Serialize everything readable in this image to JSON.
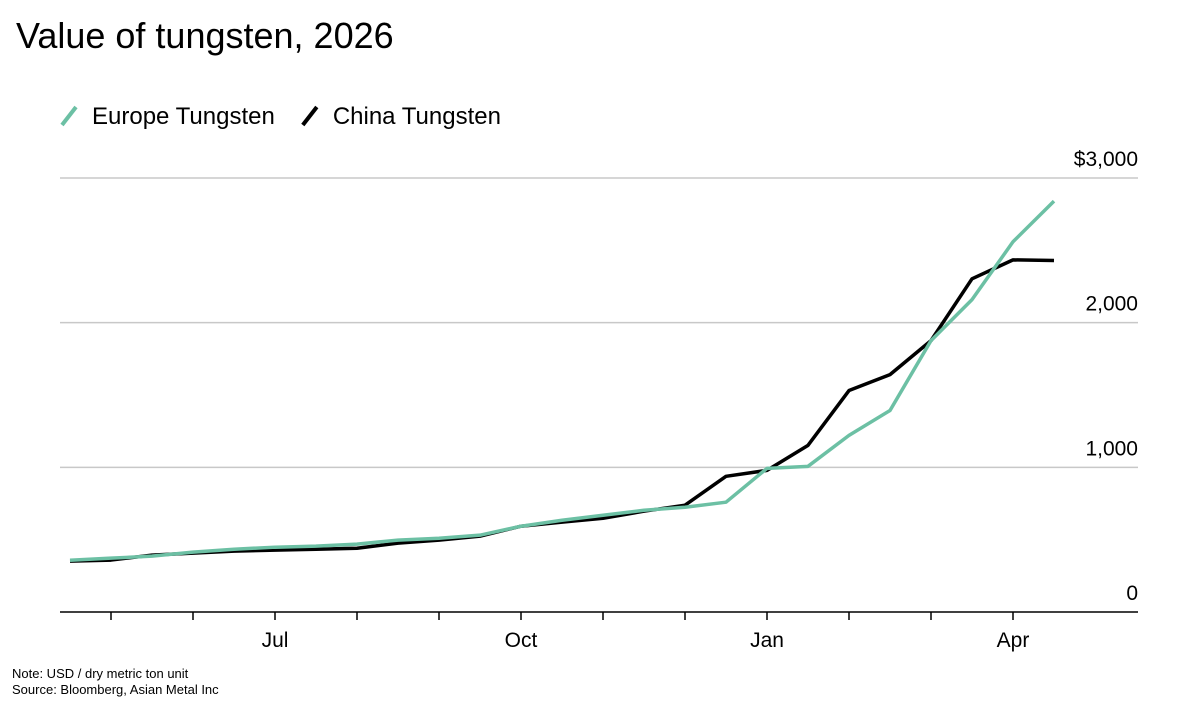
{
  "chart_data": {
    "type": "line",
    "title": "Value of tungsten, 2026",
    "note": "Note: USD / dry metric ton unit",
    "source": "Source: Bloomberg, Asian Metal Inc",
    "categories": [
      null,
      null,
      null,
      null,
      null,
      "Jul",
      null,
      null,
      null,
      null,
      null,
      "Oct",
      null,
      null,
      null,
      null,
      null,
      "Jan",
      null,
      null,
      null,
      null,
      null,
      "Apr",
      null
    ],
    "series": [
      {
        "name": "Europe Tungsten",
        "color": "#6cc0a4",
        "values": [
          358,
          372,
          386,
          414,
          434,
          448,
          455,
          469,
          497,
          510,
          531,
          593,
          634,
          669,
          703,
          724,
          759,
          993,
          1007,
          1221,
          1393,
          1876,
          2159,
          2559,
          2840
        ]
      },
      {
        "name": "China Tungsten",
        "color": "#000000",
        "values": [
          352,
          359,
          393,
          407,
          421,
          428,
          434,
          441,
          476,
          497,
          524,
          593,
          621,
          648,
          697,
          738,
          938,
          979,
          1152,
          1531,
          1641,
          1876,
          2303,
          2434,
          2430
        ]
      }
    ],
    "ylim": [
      0,
      3000
    ],
    "yticks": [
      0,
      {
        "value": 1000,
        "label": "1,000"
      },
      {
        "value": 2000,
        "label": "2,000"
      },
      {
        "value": 3000,
        "label": "$3,000"
      }
    ],
    "grid": true,
    "legend": "top-left"
  }
}
